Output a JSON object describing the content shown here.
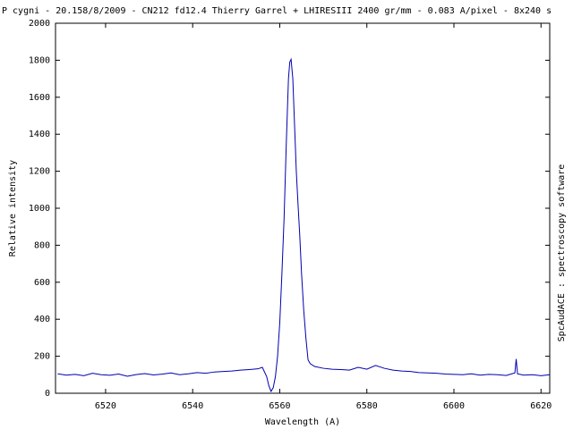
{
  "chart_data": {
    "type": "line",
    "title": "P cygni - 20.158/8/2009 - CN212 fd12.4 Thierry Garrel + LHIRESIII 2400 gr/mm - 0.083 A/pixel - 8x240 s",
    "x_label": "Wavelength (A)",
    "y_label": "Relative intensity",
    "right_label": "SpcAudACE : spectroscopy software",
    "xlim": [
      6508.5,
      6622
    ],
    "ylim": [
      0,
      2000
    ],
    "xticks": [
      6520,
      6540,
      6560,
      6580,
      6600,
      6620
    ],
    "yticks": [
      0,
      200,
      400,
      600,
      800,
      1000,
      1200,
      1400,
      1600,
      1800,
      2000
    ],
    "grid": false,
    "series": [
      {
        "color": "#0000b0",
        "x": [
          6509,
          6511,
          6513,
          6515,
          6517,
          6519,
          6521,
          6523,
          6525,
          6527,
          6529,
          6531,
          6533,
          6535,
          6537,
          6539,
          6541,
          6543,
          6545,
          6547,
          6549,
          6551,
          6553,
          6555,
          6556,
          6557,
          6557.5,
          6558,
          6558.5,
          6559,
          6559.5,
          6560,
          6560.5,
          6561,
          6561.5,
          6562,
          6562.3,
          6562.6,
          6563,
          6563.4,
          6563.8,
          6564.2,
          6564.6,
          6565,
          6565.5,
          6566,
          6566.5,
          6567,
          6568,
          6570,
          6572,
          6574,
          6576,
          6578,
          6580,
          6582,
          6584,
          6586,
          6588,
          6590,
          6592,
          6594,
          6596,
          6598,
          6600,
          6602,
          6604,
          6606,
          6608,
          6610,
          6612,
          6614,
          6614.3,
          6614.6,
          6616,
          6618,
          6620,
          6622
        ],
        "values": [
          105,
          98,
          102,
          95,
          108,
          100,
          97,
          104,
          92,
          101,
          106,
          99,
          103,
          110,
          100,
          105,
          112,
          108,
          115,
          118,
          120,
          125,
          128,
          132,
          140,
          90,
          40,
          10,
          30,
          90,
          200,
          380,
          650,
          950,
          1350,
          1700,
          1790,
          1805,
          1700,
          1450,
          1200,
          1020,
          850,
          650,
          450,
          300,
          180,
          160,
          145,
          135,
          130,
          128,
          125,
          140,
          130,
          150,
          135,
          125,
          120,
          118,
          112,
          110,
          108,
          104,
          102,
          100,
          105,
          98,
          102,
          100,
          96,
          110,
          185,
          105,
          98,
          100,
          95,
          100
        ]
      }
    ]
  }
}
